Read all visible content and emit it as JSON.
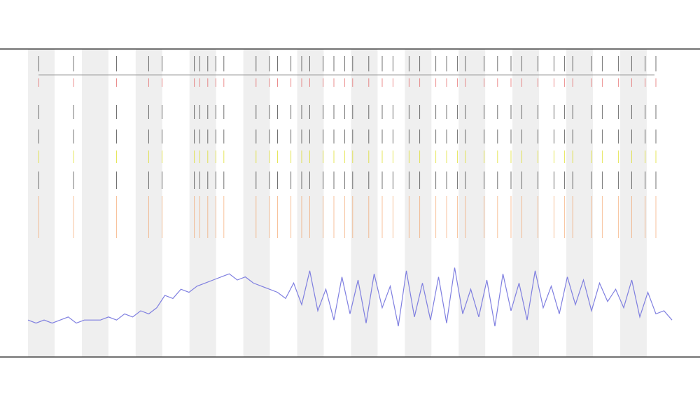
{
  "chart_data": {
    "type": "line",
    "xlim": [
      0,
      240
    ],
    "ylim": [
      0,
      100
    ],
    "series": [
      {
        "color": "#7f7fe0",
        "x": [
          0,
          3,
          6,
          9,
          12,
          15,
          18,
          21,
          24,
          27,
          30,
          33,
          36,
          39,
          42,
          45,
          48,
          51,
          54,
          57,
          60,
          63,
          66,
          69,
          72,
          75,
          78,
          81,
          84,
          87,
          90,
          93,
          96,
          99,
          102,
          105,
          108,
          111,
          114,
          117,
          120,
          123,
          126,
          129,
          132,
          135,
          138,
          141,
          144,
          147,
          150,
          153,
          156,
          159,
          162,
          165,
          168,
          171,
          174,
          177,
          180,
          183,
          186,
          189,
          192,
          195,
          198,
          201,
          204,
          207,
          210,
          213,
          216,
          219,
          222,
          225,
          228,
          231,
          234,
          237,
          240
        ],
        "values": [
          12,
          11,
          12,
          11,
          12,
          13,
          11,
          12,
          12,
          12,
          13,
          12,
          14,
          13,
          15,
          14,
          16,
          20,
          19,
          22,
          21,
          23,
          24,
          25,
          26,
          27,
          25,
          26,
          24,
          23,
          22,
          21,
          19,
          24,
          17,
          28,
          15,
          22,
          12,
          26,
          14,
          25,
          11,
          27,
          16,
          23,
          10,
          28,
          13,
          24,
          12,
          26,
          11,
          29,
          14,
          22,
          13,
          25,
          10,
          27,
          15,
          24,
          12,
          28,
          16,
          23,
          14,
          26,
          17,
          25,
          15,
          24,
          18,
          22,
          16,
          25,
          13,
          21,
          14,
          15,
          12
        ]
      }
    ],
    "events": [
      4,
      17,
      33,
      45,
      50,
      62,
      64,
      67,
      70,
      73,
      85,
      90,
      93,
      98,
      102,
      105,
      110,
      114,
      118,
      121,
      127,
      132,
      136,
      142,
      146,
      152,
      156,
      160,
      163,
      170,
      175,
      180,
      184,
      190,
      196,
      200,
      203,
      210,
      214,
      220,
      225,
      230,
      234
    ],
    "event_rows": [
      {
        "color": "#222222"
      },
      {
        "color": "#e05050"
      },
      {
        "color": "#222222"
      },
      {
        "color": "#222222"
      },
      {
        "color": "#d8d800"
      },
      {
        "color": "#222222"
      },
      {
        "color": "#f08030"
      }
    ]
  }
}
